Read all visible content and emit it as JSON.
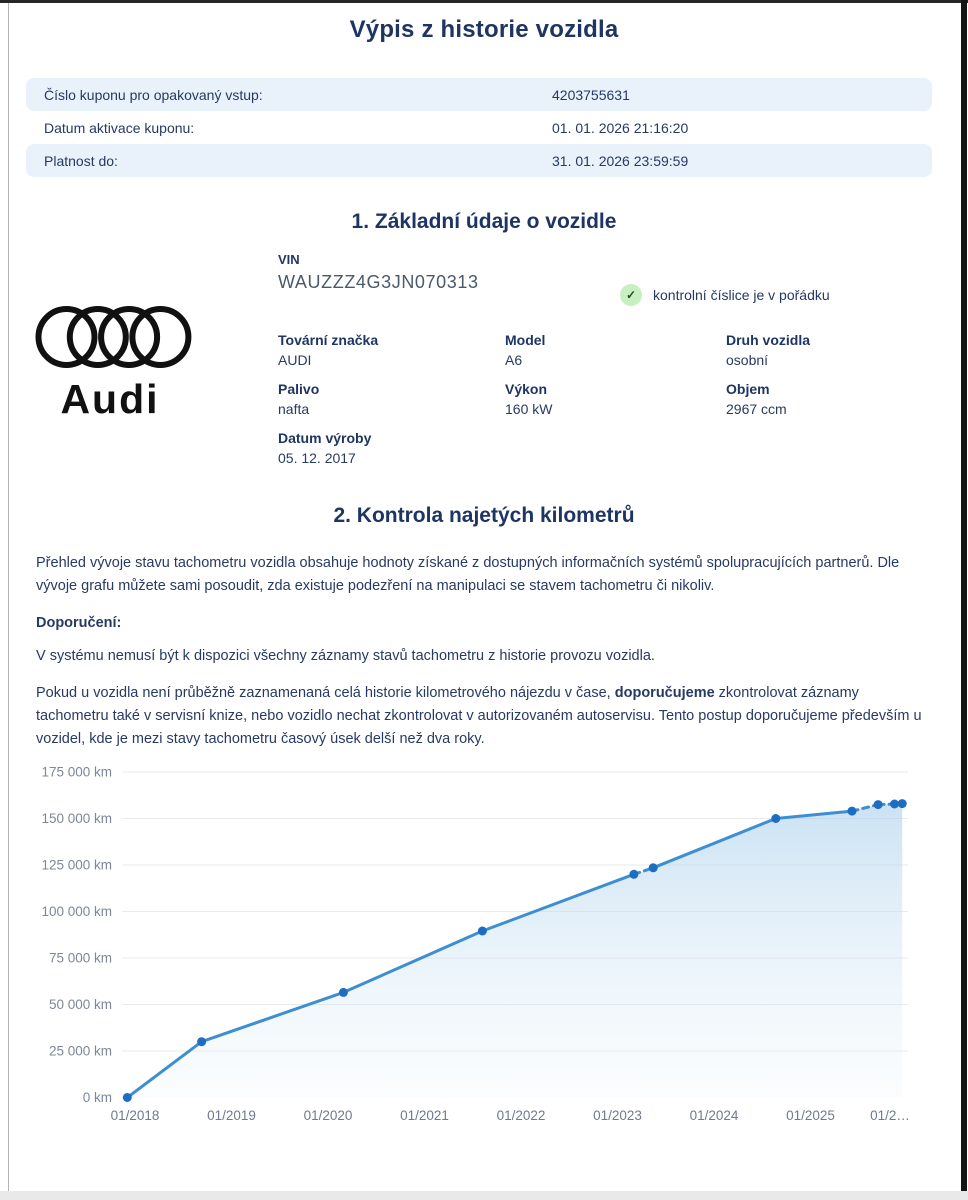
{
  "page": {
    "title": "Výpis z historie vozidla"
  },
  "colors": {
    "heading_navy": "#1e3563",
    "body_navy": "#273a63",
    "row_bg": "#e9f2fb",
    "badge_bg": "#c7efc0",
    "badge_check": "#1e4d23"
  },
  "coupon": {
    "rows": [
      {
        "label": "Číslo kuponu pro opakovaný vstup:",
        "value": "4203755631"
      },
      {
        "label": "Datum aktivace kuponu:",
        "value": "01. 01. 2026 21:16:20"
      },
      {
        "label": "Platnost do:",
        "value": "31. 01. 2026 23:59:59"
      }
    ]
  },
  "section1": {
    "heading": "1. Základní údaje o vozidle",
    "brand_name": "Audi",
    "vin_label": "VIN",
    "vin_value": "WAUZZZ4G3JN070313",
    "vin_check_text": "kontrolní číslice je v pořádku",
    "check_icon": "✓",
    "fields": [
      {
        "label": "Tovární značka",
        "value": "AUDI"
      },
      {
        "label": "Model",
        "value": "A6"
      },
      {
        "label": "Druh vozidla",
        "value": "osobní"
      },
      {
        "label": "Palivo",
        "value": "nafta"
      },
      {
        "label": "Výkon",
        "value": "160 kW"
      },
      {
        "label": "Objem",
        "value": "2967 ccm"
      },
      {
        "label": "Datum výroby",
        "value": "05. 12. 2017"
      }
    ]
  },
  "section2": {
    "heading": "2. Kontrola najetých kilometrů",
    "paragraph1": "Přehled vývoje stavu tachometru vozidla obsahuje hodnoty získané z dostupných informačních systémů spolupracujících partnerů. Dle vývoje grafu můžete sami posoudit, zda existuje podezření na manipulaci se stavem tachometru či nikoliv.",
    "recommendation_label": "Doporučení:",
    "paragraph2": "V systému nemusí být k dispozici všechny záznamy stavů tachometru z historie provozu vozidla.",
    "paragraph3_pre": "Pokud u vozidla není průběžně zaznamenaná celá historie kilometrového nájezdu v čase, ",
    "paragraph3_bold": "doporučujeme",
    "paragraph3_post": " zkontrolovat záznamy tachometru také v servisní knize, nebo vozidlo nechat zkontrolovat v autorizovaném autoservisu. Tento postup doporučujeme především u vozidel, kde je mezi stavy tachometru časový úsek delší než dva roky."
  },
  "chart_data": {
    "type": "line",
    "title": "",
    "xlabel": "",
    "ylabel": "km",
    "legend": false,
    "grid": true,
    "x_tick_labels": [
      "01/2018",
      "01/2019",
      "01/2020",
      "01/2021",
      "01/2022",
      "01/2023",
      "01/2024",
      "01/2025",
      "01/2…"
    ],
    "y_tick_labels": [
      "175 000 km",
      "150 000 km",
      "125 000 km",
      "100 000 km",
      "75 000 km",
      "50 000 km",
      "25 000 km",
      "0 km"
    ],
    "y_tick_values": [
      175000,
      150000,
      125000,
      100000,
      75000,
      50000,
      25000,
      0
    ],
    "ylim": [
      0,
      175000
    ],
    "xlim_years": [
      2017.8,
      2026.05
    ],
    "points": [
      {
        "date": "12/2017",
        "t": 2017.92,
        "km": 0,
        "dash_to_next": false
      },
      {
        "date": "09/2018",
        "t": 2018.69,
        "km": 30000,
        "dash_to_next": false
      },
      {
        "date": "02/2020",
        "t": 2020.16,
        "km": 56500,
        "dash_to_next": false
      },
      {
        "date": "08/2021",
        "t": 2021.6,
        "km": 89500,
        "dash_to_next": false
      },
      {
        "date": "03/2023",
        "t": 2023.17,
        "km": 120000,
        "dash_to_next": true
      },
      {
        "date": "05/2023",
        "t": 2023.37,
        "km": 123500,
        "dash_to_next": false
      },
      {
        "date": "08/2024",
        "t": 2024.64,
        "km": 150000,
        "dash_to_next": false
      },
      {
        "date": "06/2025",
        "t": 2025.43,
        "km": 154000,
        "dash_to_next": true
      },
      {
        "date": "09/2025",
        "t": 2025.7,
        "km": 157500,
        "dash_to_next": true
      },
      {
        "date": "11/2025",
        "t": 2025.87,
        "km": 157800,
        "dash_to_next": true
      },
      {
        "date": "12/2025",
        "t": 2025.95,
        "km": 158000,
        "dash_to_next": false
      }
    ],
    "colors": {
      "line": "#3e8ed2",
      "point": "#1b6ec2",
      "fill_top": "#a9cfec",
      "fill_bottom": "#eef6fc",
      "grid": "#e9e9ee",
      "axis_text": "#7d8798"
    }
  }
}
